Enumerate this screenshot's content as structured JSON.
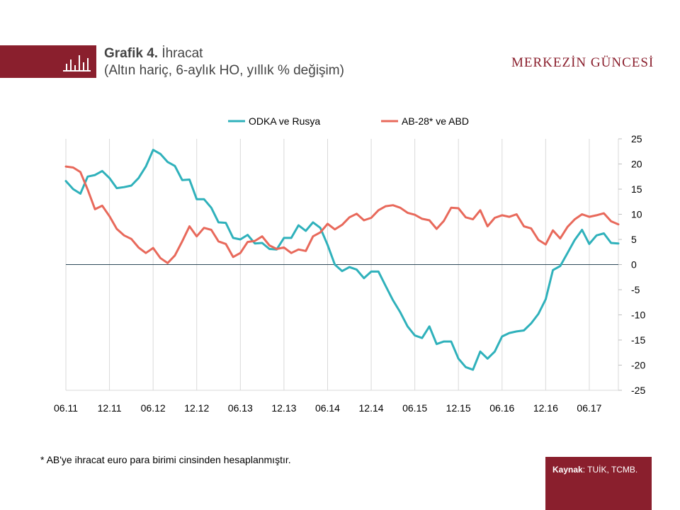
{
  "header": {
    "title_bold": "Grafik 4.",
    "title_rest": " İhracat",
    "subtitle": "(Altın hariç,  6-aylık HO,  yıllık % değişim)",
    "brand": "MERKEZİN GÜNCESİ",
    "icon": "bar-chart-icon",
    "accent_color": "#8a1f2d"
  },
  "chart_data": {
    "type": "line",
    "x": [
      "06.11",
      "07.11",
      "08.11",
      "09.11",
      "10.11",
      "11.11",
      "12.11",
      "01.12",
      "02.12",
      "03.12",
      "04.12",
      "05.12",
      "06.12",
      "07.12",
      "08.12",
      "09.12",
      "10.12",
      "11.12",
      "12.12",
      "01.13",
      "02.13",
      "03.13",
      "04.13",
      "05.13",
      "06.13",
      "07.13",
      "08.13",
      "09.13",
      "10.13",
      "11.13",
      "12.13",
      "01.14",
      "02.14",
      "03.14",
      "04.14",
      "05.14",
      "06.14",
      "07.14",
      "08.14",
      "09.14",
      "10.14",
      "11.14",
      "12.14",
      "01.15",
      "02.15",
      "03.15",
      "04.15",
      "05.15",
      "06.15",
      "07.15",
      "08.15",
      "09.15",
      "10.15",
      "11.15",
      "12.15",
      "01.16",
      "02.16",
      "03.16",
      "04.16",
      "05.16",
      "06.16",
      "07.16",
      "08.16",
      "09.16",
      "10.16",
      "11.16",
      "12.16",
      "01.17",
      "02.17",
      "03.17",
      "04.17",
      "05.17",
      "06.17",
      "07.17",
      "08.17",
      "09.17",
      "10.17"
    ],
    "x_tick_labels": [
      "06.11",
      "12.11",
      "06.12",
      "12.12",
      "06.13",
      "12.13",
      "06.14",
      "12.14",
      "06.15",
      "12.15",
      "06.16",
      "12.16",
      "06.17"
    ],
    "series": [
      {
        "name": "ODKA ve Rusya",
        "color": "#2fb1bb",
        "values": [
          16.6,
          15.0,
          14.1,
          17.5,
          17.8,
          18.6,
          17.2,
          15.2,
          15.4,
          15.7,
          17.2,
          19.5,
          22.8,
          22.0,
          20.4,
          19.6,
          16.8,
          16.9,
          13.0,
          13.0,
          11.3,
          8.4,
          8.3,
          5.3,
          5.0,
          5.9,
          4.2,
          4.3,
          3.1,
          3.0,
          5.3,
          5.3,
          7.8,
          6.7,
          8.4,
          7.3,
          3.9,
          0.0,
          -1.3,
          -0.5,
          -1.0,
          -2.7,
          -1.4,
          -1.4,
          -4.3,
          -7.1,
          -9.5,
          -12.3,
          -14.1,
          -14.6,
          -12.3,
          -15.8,
          -15.3,
          -15.3,
          -18.7,
          -20.4,
          -20.9,
          -17.3,
          -18.7,
          -17.3,
          -14.3,
          -13.6,
          -13.3,
          -13.1,
          -11.7,
          -9.8,
          -6.9,
          -1.1,
          -0.3,
          2.3,
          4.9,
          6.9,
          4.1,
          5.8,
          6.2,
          4.3,
          4.2
        ]
      },
      {
        "name": "AB-28* ve ABD",
        "color": "#e8695b",
        "values": [
          19.5,
          19.3,
          18.4,
          14.9,
          11.0,
          11.7,
          9.6,
          7.1,
          5.8,
          5.1,
          3.4,
          2.3,
          3.3,
          1.3,
          0.3,
          1.8,
          4.6,
          7.6,
          5.6,
          7.3,
          6.9,
          4.6,
          4.1,
          1.5,
          2.3,
          4.5,
          4.7,
          5.6,
          3.8,
          3.1,
          3.4,
          2.3,
          3.0,
          2.7,
          5.6,
          6.4,
          8.1,
          7.0,
          7.9,
          9.4,
          10.1,
          8.8,
          9.3,
          10.8,
          11.6,
          11.8,
          11.3,
          10.3,
          9.9,
          9.1,
          8.8,
          7.1,
          8.7,
          11.3,
          11.2,
          9.4,
          9.0,
          10.8,
          7.6,
          9.3,
          9.8,
          9.5,
          10.0,
          7.6,
          7.2,
          4.9,
          4.0,
          6.8,
          5.2,
          7.5,
          9.0,
          10.0,
          9.5,
          9.8,
          10.2,
          8.6,
          8.0
        ]
      }
    ],
    "y_tick_labels": [
      "25",
      "20",
      "15",
      "10",
      "5",
      "0",
      "-5",
      "-10",
      "-15",
      "-20",
      "-25"
    ],
    "ylim": [
      -25,
      25
    ],
    "xlabel": "",
    "ylabel": "",
    "grid": "vertical",
    "legend_position": "top"
  },
  "footnote": "* AB'ye ihracat euro para birimi cinsinden hesaplanmıştır.",
  "source": {
    "label": "Kaynak",
    "text": ": TUİK, TCMB."
  }
}
